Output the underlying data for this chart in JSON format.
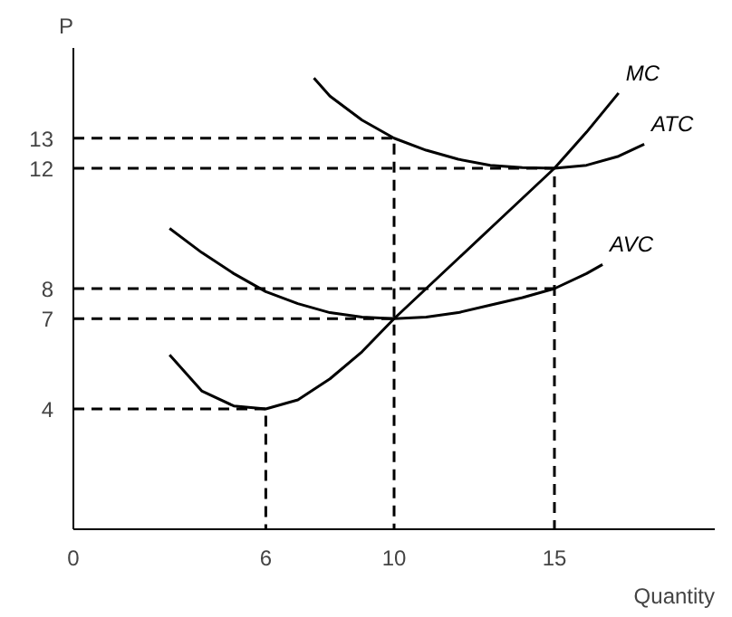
{
  "chart_data": {
    "type": "line",
    "xlabel": "Quantity",
    "ylabel": "P",
    "xlim": [
      0,
      20
    ],
    "ylim": [
      0,
      16
    ],
    "xticks": [
      0,
      6,
      10,
      15
    ],
    "yticks": [
      4,
      7,
      8,
      12,
      13
    ],
    "grid": false,
    "legend": false,
    "marker": "none",
    "series": [
      {
        "name": "MC",
        "color": "#000000",
        "line_style": "solid",
        "x": [
          3,
          4,
          5,
          6,
          7,
          8,
          9,
          10,
          11,
          12,
          13,
          14,
          15,
          16,
          17
        ],
        "values": [
          5.8,
          4.6,
          4.1,
          4,
          4.3,
          5,
          5.9,
          7,
          8,
          9,
          10,
          11,
          12,
          13.2,
          14.5
        ]
      },
      {
        "name": "ATC",
        "color": "#000000",
        "line_style": "solid",
        "x": [
          7.5,
          8,
          9,
          10,
          11,
          12,
          13,
          14,
          15,
          16,
          17,
          17.8
        ],
        "values": [
          15,
          14.4,
          13.6,
          13,
          12.6,
          12.3,
          12.1,
          12.02,
          12,
          12.1,
          12.4,
          12.8
        ]
      },
      {
        "name": "AVC",
        "color": "#000000",
        "line_style": "solid",
        "x": [
          3,
          4,
          5,
          6,
          7,
          8,
          9,
          10,
          11,
          12,
          13,
          14,
          15,
          16,
          16.5
        ],
        "values": [
          10,
          9.2,
          8.5,
          7.9,
          7.5,
          7.2,
          7.05,
          7,
          7.05,
          7.2,
          7.45,
          7.7,
          8,
          8.5,
          8.8
        ]
      },
      {
        "color": "#000000",
        "line_style": "dashed",
        "x": [
          0,
          10,
          10
        ],
        "values": [
          13,
          13,
          0
        ]
      },
      {
        "color": "#000000",
        "line_style": "dashed",
        "x": [
          0,
          15,
          15
        ],
        "values": [
          12,
          12,
          0
        ]
      },
      {
        "color": "#000000",
        "line_style": "dashed",
        "x": [
          0,
          15
        ],
        "values": [
          8,
          8
        ]
      },
      {
        "color": "#000000",
        "line_style": "dashed",
        "x": [
          0,
          10
        ],
        "values": [
          7,
          7
        ]
      },
      {
        "color": "#000000",
        "line_style": "dashed",
        "x": [
          0,
          6,
          6
        ],
        "values": [
          4,
          4,
          0
        ]
      }
    ]
  }
}
